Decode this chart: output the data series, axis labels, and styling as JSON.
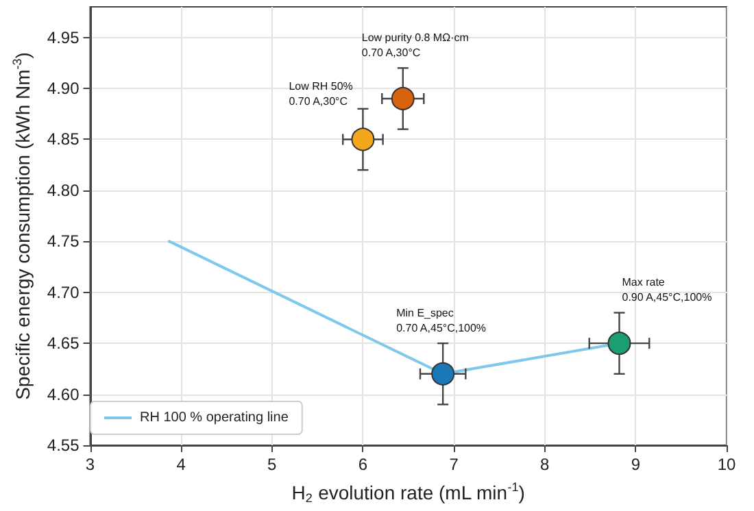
{
  "chart_data": {
    "type": "scatter",
    "xlabel": "H$_{2}$ evolution rate (mL min$^{-1}$)",
    "ylabel": "Specific energy consumption (kWh Nm$^{-3}$)",
    "xlim": [
      3,
      10
    ],
    "xticks": [
      3,
      4,
      5,
      6,
      7,
      8,
      9,
      10
    ],
    "ylim": [
      4.55,
      4.98
    ],
    "yticks": [
      {
        "value": 4.55,
        "label": "4.55"
      },
      {
        "value": 4.6,
        "label": "4.60"
      },
      {
        "value": 4.65,
        "label": "4.65"
      },
      {
        "value": 4.7,
        "label": "4.70"
      },
      {
        "value": 4.75,
        "label": "4.75"
      },
      {
        "value": 4.8,
        "label": "4.80"
      },
      {
        "value": 4.85,
        "label": "4.85"
      },
      {
        "value": 4.9,
        "label": "4.90"
      },
      {
        "value": 4.95,
        "label": "4.95"
      }
    ],
    "grid": true,
    "legend": "bottom left",
    "series": [
      {
        "name": "RH 100 % operating line",
        "type": "line",
        "color": "#7ec8ec",
        "marker": "none",
        "x": [
          3.87,
          6.88,
          8.82
        ],
        "values": [
          4.75,
          4.62,
          4.65
        ]
      },
      {
        "type": "scatter",
        "color": "#f2a71c",
        "marker": "circle",
        "x": [
          6.0
        ],
        "values": [
          4.85
        ],
        "errors": [
          0.03
        ],
        "xerrors": [
          0.22
        ]
      },
      {
        "type": "scatter",
        "color": "#d9620f",
        "marker": "circle",
        "x": [
          6.44
        ],
        "values": [
          4.89
        ],
        "errors": [
          0.03
        ],
        "xerrors": [
          0.23
        ]
      },
      {
        "type": "scatter",
        "color": "#1b78b8",
        "marker": "circle",
        "x": [
          6.88
        ],
        "values": [
          4.62
        ],
        "errors": [
          0.03
        ],
        "xerrors": [
          0.25
        ]
      },
      {
        "type": "scatter",
        "color": "#1a9e72",
        "marker": "circle",
        "x": [
          8.82
        ],
        "values": [
          4.65
        ],
        "errors": [
          0.03
        ],
        "xerrors": [
          0.33
        ]
      }
    ],
    "annotations": [
      "Low RH 50%\n0.70 A,30°C",
      "Low purity 0.8 MΩ·cm\n0.70 A,30°C",
      "Min E_spec\n0.70 A,45°C,100%",
      "Max rate\n0.90 A,45°C,100%"
    ]
  }
}
